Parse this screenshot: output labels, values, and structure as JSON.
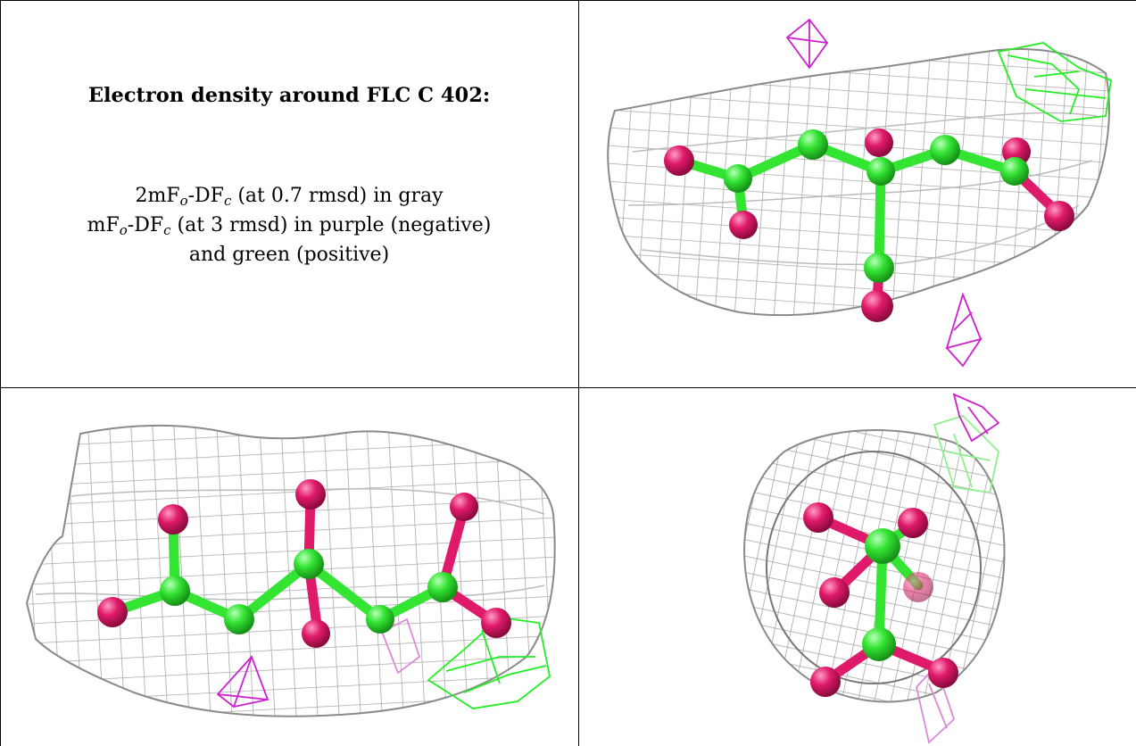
{
  "caption": {
    "title": "Electron density around FLC C 402:",
    "line1": {
      "a": "2mF",
      "sub1": "o",
      "b": "-DF",
      "sub2": "c",
      "c": " (at 0.7 rmsd) in gray"
    },
    "line2": {
      "a": "mF",
      "sub1": "o",
      "b": "-DF",
      "sub2": "c",
      "c": " (at 3 rmsd) in purple (negative)"
    },
    "line3": "and green (positive)"
  },
  "colors": {
    "mesh_gray": "#a8a8a8",
    "mesh_purple": "#cc22cc",
    "mesh_green": "#22ee22",
    "carbon": "#33e433",
    "oxygen": "#e01a6a"
  }
}
